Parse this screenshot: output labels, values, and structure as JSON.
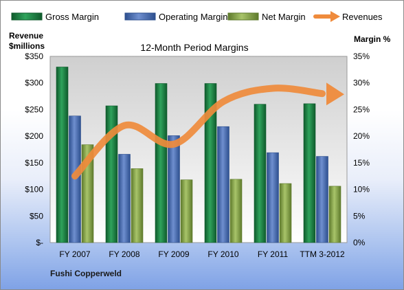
{
  "chart_data": {
    "type": "bar",
    "title": "12-Month Period Margins",
    "company": "Fushi Copperweld",
    "left_axis_title": [
      "Revenue",
      "$millions"
    ],
    "right_axis_title": "Margin %",
    "categories": [
      "FY 2007",
      "FY 2008",
      "FY 2009",
      "FY 2010",
      "FY 2011",
      "TTM 3-2012"
    ],
    "left_ticks": [
      "$-",
      "$50",
      "$100",
      "$150",
      "$200",
      "$250",
      "$300",
      "$350"
    ],
    "right_ticks": [
      "0%",
      "5%",
      "10%",
      "15%",
      "20%",
      "25%",
      "30%",
      "35%"
    ],
    "left_ylim": [
      0,
      350
    ],
    "right_ylim": [
      0,
      35
    ],
    "grid": false,
    "legend_position": "top",
    "series": [
      {
        "name": "Gross Margin",
        "axis": "right",
        "color": "#1f8a4a",
        "values": [
          33.0,
          25.7,
          29.9,
          29.9,
          26.0,
          26.1
        ]
      },
      {
        "name": "Operating Margin",
        "axis": "right",
        "color": "#4e73b8",
        "values": [
          23.8,
          16.6,
          20.1,
          21.8,
          16.9,
          16.2
        ]
      },
      {
        "name": "Net Margin",
        "axis": "right",
        "color": "#8cab50",
        "values": [
          18.4,
          13.9,
          11.8,
          11.9,
          11.1,
          10.6
        ]
      }
    ],
    "line_series": {
      "name": "Revenues",
      "axis": "left",
      "color": "#ef8b3c",
      "values": [
        125,
        220,
        185,
        265,
        290,
        280
      ]
    }
  }
}
